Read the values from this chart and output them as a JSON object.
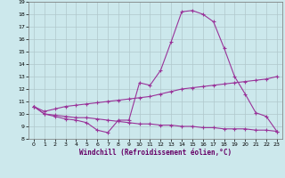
{
  "xlabel": "Windchill (Refroidissement éolien,°C)",
  "background_color": "#cce8ec",
  "grid_color": "#b0c8cc",
  "line_color": "#993399",
  "xlim": [
    -0.5,
    23.5
  ],
  "ylim": [
    8,
    19
  ],
  "xticks": [
    0,
    1,
    2,
    3,
    4,
    5,
    6,
    7,
    8,
    9,
    10,
    11,
    12,
    13,
    14,
    15,
    16,
    17,
    18,
    19,
    20,
    21,
    22,
    23
  ],
  "yticks": [
    8,
    9,
    10,
    11,
    12,
    13,
    14,
    15,
    16,
    17,
    18,
    19
  ],
  "line1_x": [
    0,
    1,
    2,
    3,
    4,
    5,
    6,
    7,
    8,
    9,
    10,
    11,
    12,
    13,
    14,
    15,
    16,
    17,
    18,
    19,
    20,
    21,
    22,
    23
  ],
  "line1_y": [
    10.6,
    10.0,
    9.8,
    9.6,
    9.5,
    9.3,
    8.7,
    8.5,
    9.5,
    9.5,
    12.5,
    12.3,
    13.5,
    15.8,
    18.2,
    18.3,
    18.0,
    17.4,
    15.3,
    13.0,
    11.6,
    10.1,
    9.8,
    8.6
  ],
  "line2_x": [
    0,
    1,
    2,
    3,
    4,
    5,
    6,
    7,
    8,
    9,
    10,
    11,
    12,
    13,
    14,
    15,
    16,
    17,
    18,
    19,
    20,
    21,
    22,
    23
  ],
  "line2_y": [
    10.6,
    10.2,
    10.4,
    10.6,
    10.7,
    10.8,
    10.9,
    11.0,
    11.1,
    11.2,
    11.3,
    11.4,
    11.6,
    11.8,
    12.0,
    12.1,
    12.2,
    12.3,
    12.4,
    12.5,
    12.6,
    12.7,
    12.8,
    13.0
  ],
  "line3_x": [
    0,
    1,
    2,
    3,
    4,
    5,
    6,
    7,
    8,
    9,
    10,
    11,
    12,
    13,
    14,
    15,
    16,
    17,
    18,
    19,
    20,
    21,
    22,
    23
  ],
  "line3_y": [
    10.6,
    10.0,
    9.9,
    9.8,
    9.7,
    9.7,
    9.6,
    9.5,
    9.4,
    9.3,
    9.2,
    9.2,
    9.1,
    9.1,
    9.0,
    9.0,
    8.9,
    8.9,
    8.8,
    8.8,
    8.8,
    8.7,
    8.7,
    8.6
  ]
}
